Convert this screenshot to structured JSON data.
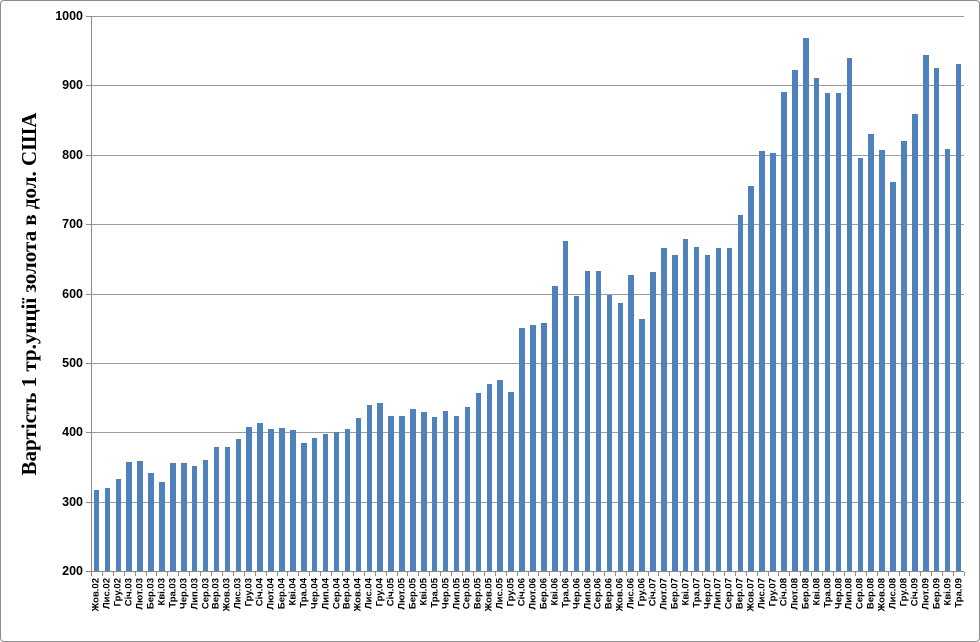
{
  "chart_data": {
    "type": "bar",
    "title": "",
    "ylabel": "Вартість 1 тр.унції золота в дол. США",
    "xlabel": "",
    "ylim": [
      200,
      1000
    ],
    "y_ticks": [
      200,
      300,
      400,
      500,
      600,
      700,
      800,
      900,
      1000
    ],
    "grid": "horizontal",
    "legend": "none",
    "categories": [
      "Жов.02",
      "Лис.02",
      "Гру.02",
      "Січ.03",
      "Лют.03",
      "Бер.03",
      "Кві.03",
      "Тра.03",
      "Чер.03",
      "Лип.03",
      "Сер.03",
      "Вер.03",
      "Жов.03",
      "Лис.03",
      "Гру.03",
      "Січ.04",
      "Лют.04",
      "Бер.04",
      "Кві.04",
      "Тра.04",
      "Чер.04",
      "Лип.04",
      "Сер.04",
      "Вер.04",
      "Жов.04",
      "Лис.04",
      "Гру.04",
      "Січ.05",
      "Лют.05",
      "Бер.05",
      "Кві.05",
      "Тра.05",
      "Чер.05",
      "Лип.05",
      "Сер.05",
      "Вер.05",
      "Жов.05",
      "Лис.05",
      "Гру.05",
      "Січ.06",
      "Лют.06",
      "Бер.06",
      "Кві.06",
      "Тра.06",
      "Чер.06",
      "Лип.06",
      "Сер.06",
      "Вер.06",
      "Жов.06",
      "Лис.06",
      "Гру.06",
      "Січ.07",
      "Лют.07",
      "Бер.07",
      "Кві.07",
      "Тра.07",
      "Чер.07",
      "Лип.07",
      "Сер.07",
      "Вер.07",
      "Жов.07",
      "Лис.07",
      "Гру.07",
      "Січ.08",
      "Лют.08",
      "Бер.08",
      "Кві.08",
      "Тра.08",
      "Чер.08",
      "Лип.08",
      "Сер.08",
      "Вер.08",
      "Жов.08",
      "Лис.08",
      "Гру.08",
      "Січ.09",
      "Лют.09",
      "Бер.09",
      "Кві.09",
      "Тра.09"
    ],
    "values": [
      317,
      319,
      333,
      357,
      359,
      341,
      328,
      355,
      356,
      351,
      360,
      379,
      379,
      390,
      407,
      414,
      405,
      406,
      403,
      384,
      392,
      398,
      400,
      405,
      420,
      439,
      442,
      424,
      423,
      434,
      429,
      422,
      431,
      424,
      437,
      456,
      470,
      476,
      458,
      550,
      555,
      557,
      611,
      675,
      596,
      633,
      632,
      598,
      586,
      627,
      563,
      631,
      665,
      655,
      679,
      667,
      655,
      665,
      665,
      713,
      755,
      806,
      803,
      890,
      922,
      968,
      910,
      889,
      889,
      940,
      796,
      830,
      807,
      761,
      820,
      859,
      944,
      925,
      809,
      931
    ]
  },
  "colors": {
    "bar": "#4f81bd",
    "gridline": "#9c9c9c",
    "axis": "#8a8a8a",
    "text": "#000000",
    "border": "#8c8c8c",
    "background": "#ffffff"
  }
}
